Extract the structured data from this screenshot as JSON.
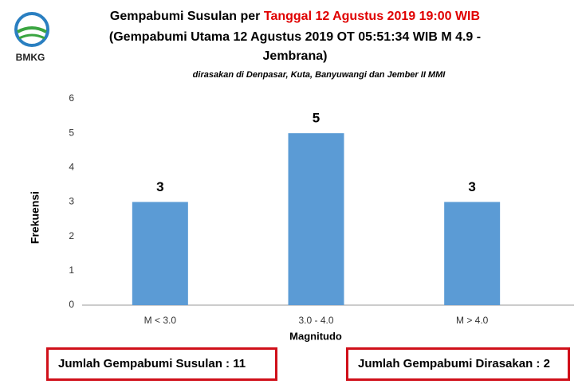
{
  "logo": "BMKG",
  "chart_data": {
    "type": "bar",
    "title": "Gempabumi Susulan per ",
    "title_highlight": "Tanggal 12 Agustus 2019 19:00 WIB",
    "title_highlight_color": "#e00000",
    "subtitle": [
      "(Gempabumi Utama 12 Agustus 2019 OT 05:51:34 WIB M 4.9 -",
      "Jembrana)"
    ],
    "note": "dirasakan di Denpasar, Kuta, Banyuwangi dan Jember II MMI",
    "categories": [
      "M < 3.0",
      "3.0 - 4.0",
      "M > 4.0"
    ],
    "values": [
      3,
      5,
      3
    ],
    "color": "#5b9bd5",
    "ylim": [
      0,
      6
    ],
    "yticks": [
      0,
      1,
      2,
      3,
      4,
      5,
      6
    ],
    "xlabel": "Magnitudo",
    "ylabel": "Frekuensi",
    "grid": false
  },
  "summary": [
    "Jumlah Gempabumi Susulan : 11",
    "Jumlah Gempabumi Dirasakan : 2"
  ]
}
